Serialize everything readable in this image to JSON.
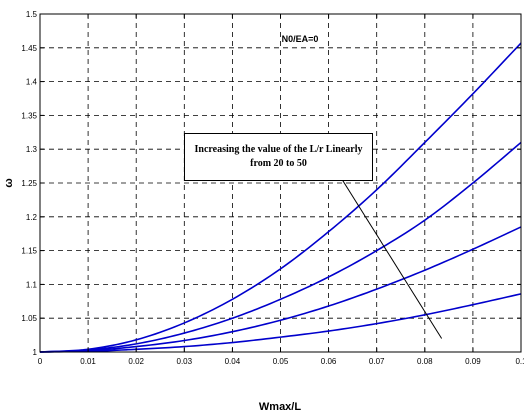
{
  "chart_data": {
    "type": "line",
    "title": "N0/EA=0",
    "xlabel": "Wmax/L",
    "ylabel": "ω",
    "xlim": [
      0,
      0.1
    ],
    "ylim": [
      1,
      1.5
    ],
    "xticks": [
      0,
      0.01,
      0.02,
      0.03,
      0.04,
      0.05,
      0.06,
      0.07,
      0.08,
      0.09,
      0.1
    ],
    "xtick_labels": [
      "0",
      "0.01",
      "0.02",
      "0.03",
      "0.04",
      "0.05",
      "0.06",
      "0.07",
      "0.08",
      "0.09",
      "0.1"
    ],
    "yticks": [
      1,
      1.05,
      1.1,
      1.15,
      1.2,
      1.25,
      1.3,
      1.35,
      1.4,
      1.45,
      1.5
    ],
    "ytick_labels": [
      "1",
      "1.05",
      "1.1",
      "1.15",
      "1.2",
      "1.25",
      "1.3",
      "1.35",
      "1.4",
      "1.45",
      "1.5"
    ],
    "grid": true,
    "line_color": "#0000cc",
    "x": [
      0,
      0.01,
      0.02,
      0.03,
      0.04,
      0.05,
      0.06,
      0.07,
      0.08,
      0.09,
      0.1
    ],
    "series": [
      {
        "values": [
          1,
          1.001,
          1.004,
          1.008,
          1.014,
          1.022,
          1.031,
          1.042,
          1.055,
          1.07,
          1.086
        ]
      },
      {
        "values": [
          1,
          1.002,
          1.008,
          1.017,
          1.03,
          1.047,
          1.068,
          1.093,
          1.121,
          1.152,
          1.185
        ]
      },
      {
        "values": [
          1,
          1.003,
          1.012,
          1.028,
          1.05,
          1.078,
          1.111,
          1.15,
          1.195,
          1.25,
          1.31
        ]
      },
      {
        "values": [
          1,
          1.004,
          1.018,
          1.043,
          1.078,
          1.123,
          1.178,
          1.24,
          1.31,
          1.382,
          1.457
        ]
      }
    ],
    "annotation": {
      "line1": "Increasing the value of the L/r Linearly",
      "line2": "from 20 to 50",
      "arrow_from": [
        0.0835,
        1.02
      ],
      "arrow_to": [
        0.0615,
        1.27
      ]
    }
  }
}
